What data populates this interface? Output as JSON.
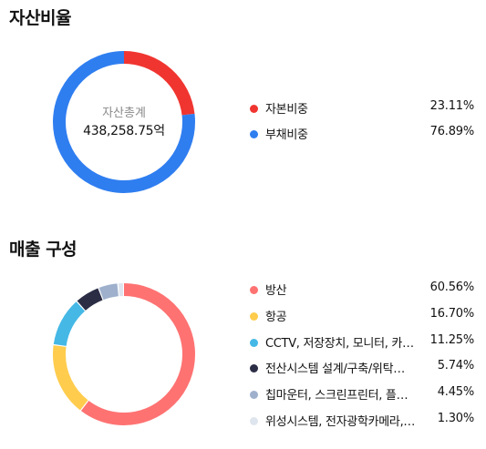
{
  "asset_ratio": {
    "title": "자산비율",
    "center_label": "자산총계",
    "center_value": "438,258.75억",
    "colors": {
      "capital": "#f03530",
      "liability": "#2f7ef0"
    }
  },
  "sales_composition": {
    "title": "매출 구성"
  },
  "chart_data": [
    {
      "type": "pie",
      "title": "자산비율",
      "categories": [
        "자본비중",
        "부채비중"
      ],
      "values": [
        23.11,
        76.89
      ],
      "display_values": [
        "23.11%",
        "76.89%"
      ],
      "colors": [
        "#f03530",
        "#2f7ef0"
      ],
      "donut": true,
      "legend": "right"
    },
    {
      "type": "pie",
      "title": "매출 구성",
      "categories": [
        "방산",
        "항공",
        "CCTV, 저장장치, 모니터, 카…",
        "전산시스템 설계/구축/위탁…",
        "칩마운터, 스크린프린터, 플…",
        "위성시스템, 전자광학카메라,…"
      ],
      "values": [
        60.56,
        16.7,
        11.25,
        5.74,
        4.45,
        1.3
      ],
      "display_values": [
        "60.56%",
        "16.70%",
        "11.25%",
        "5.74%",
        "4.45%",
        "1.30%"
      ],
      "colors": [
        "#ff7272",
        "#ffcc4d",
        "#45b8e6",
        "#2b2d45",
        "#9eb0cc",
        "#dfe5ee"
      ],
      "donut": true,
      "legend": "right"
    }
  ]
}
